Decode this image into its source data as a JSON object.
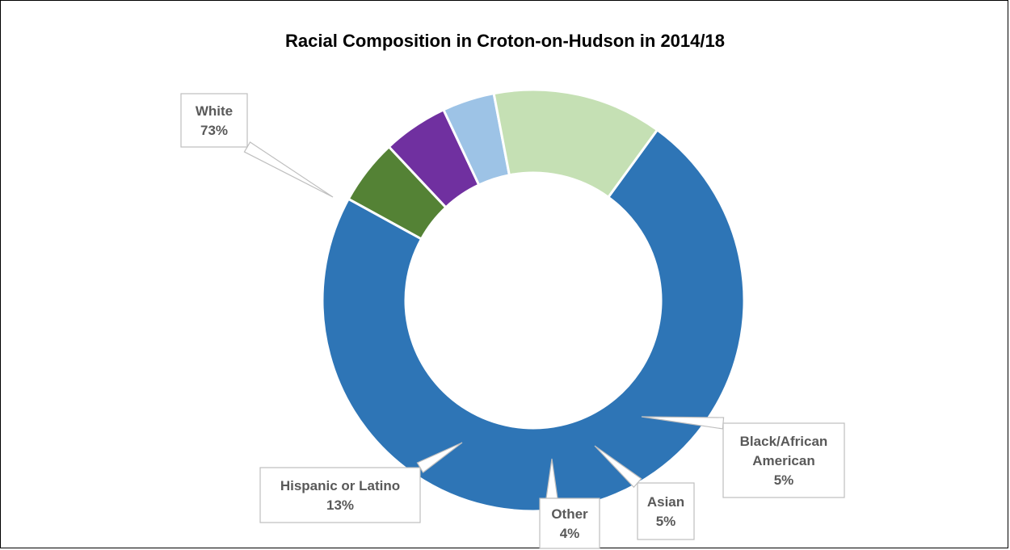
{
  "chart_data": {
    "type": "pie",
    "variant": "donut",
    "title": "Racial Composition in Croton-on-Hudson in 2014/18",
    "slices": [
      {
        "label": "White",
        "value": 73,
        "display": "73%",
        "color": "#2e75b6"
      },
      {
        "label": "Black/African American",
        "value": 5,
        "display": "5%",
        "color": "#548235"
      },
      {
        "label": "Asian",
        "value": 5,
        "display": "5%",
        "color": "#7030a0"
      },
      {
        "label": "Other",
        "value": 4,
        "display": "4%",
        "color": "#9dc3e6"
      },
      {
        "label": "Hispanic or Latino",
        "value": 13,
        "display": "13%",
        "color": "#c5e0b4"
      }
    ],
    "legend": "none",
    "data_labels": "callouts"
  }
}
